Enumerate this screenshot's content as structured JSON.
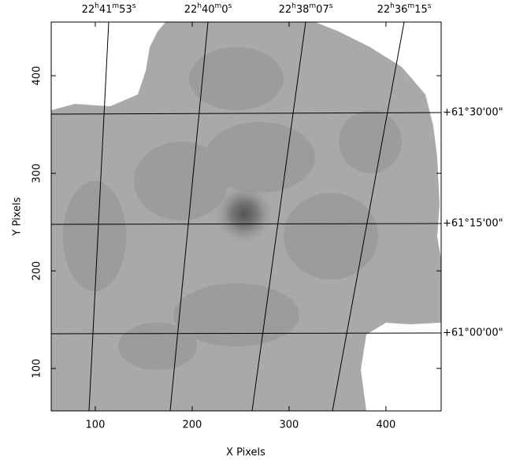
{
  "chart_data": {
    "type": "image",
    "x_label": "X Pixels",
    "y_label": "Y Pixels",
    "xlim": [
      54.5,
      457
    ],
    "ylim": [
      56.5,
      455
    ],
    "xticks": [
      100,
      200,
      300,
      400
    ],
    "yticks": [
      100,
      200,
      300,
      400
    ],
    "ra_labels": [
      [
        "22",
        "h",
        "41",
        "m",
        "53",
        "s"
      ],
      [
        "22",
        "h",
        "40",
        "m",
        "0",
        "s"
      ],
      [
        "22",
        "h",
        "38",
        "m",
        "07",
        "s"
      ],
      [
        "22",
        "h",
        "36",
        "m",
        "15",
        "s"
      ]
    ],
    "dec_labels": [
      "+61°30'00\"",
      "+61°15'00\"",
      "+61°00'00\""
    ]
  }
}
